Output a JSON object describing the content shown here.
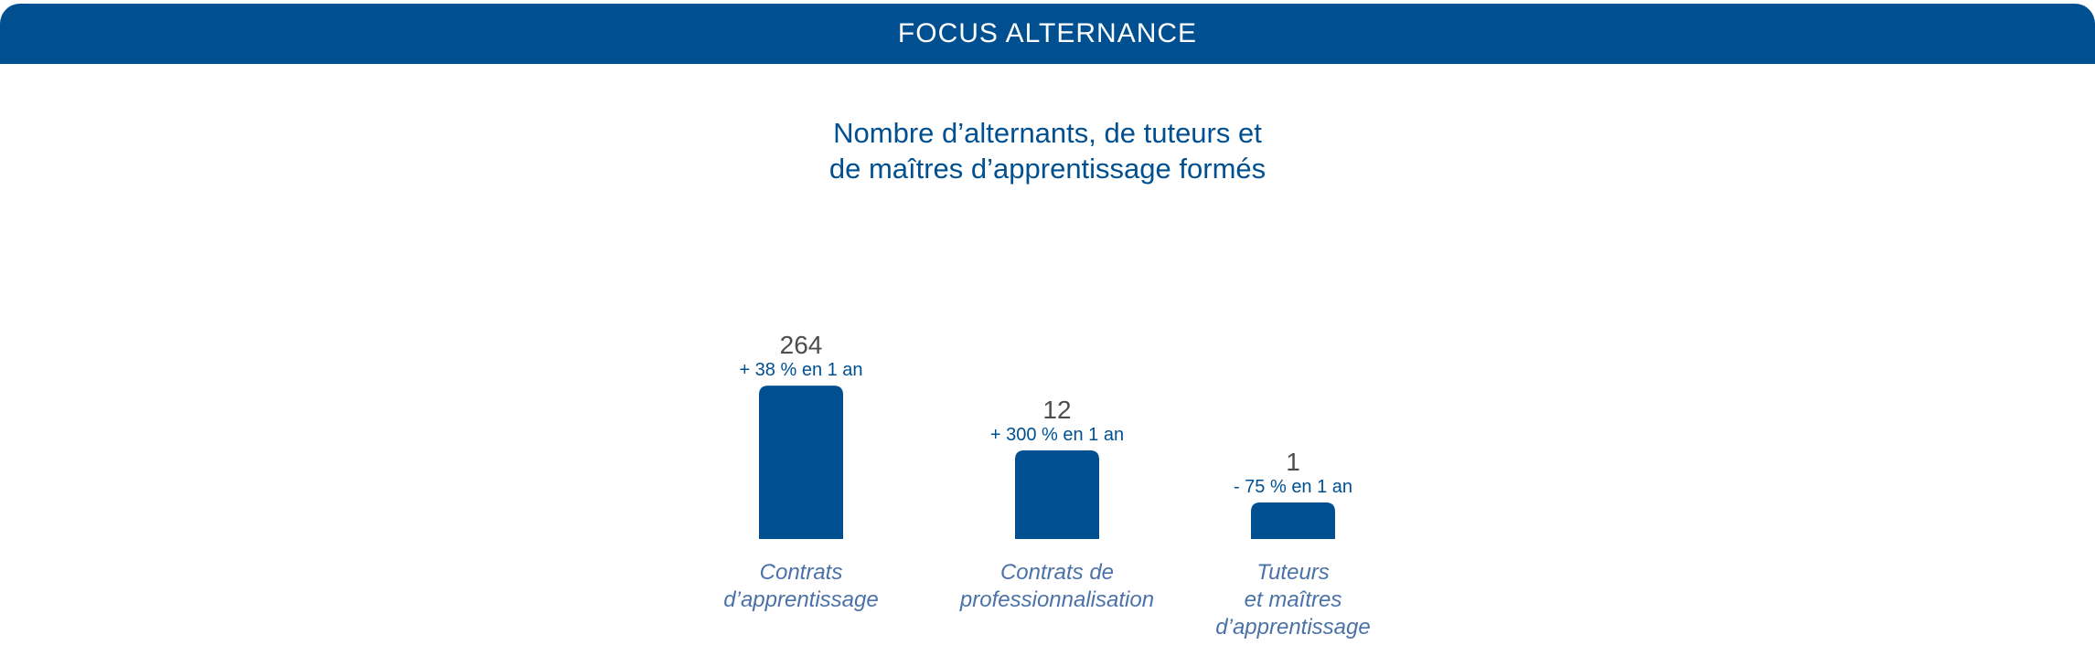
{
  "header": {
    "title": "FOCUS ALTERNANCE"
  },
  "colors": {
    "brand": "#005091",
    "value_text": "#4d4d4d",
    "category_text": "#4a72a8"
  },
  "chart_data": {
    "type": "bar",
    "title_lines": [
      "Nombre d’alternants, de tuteurs et",
      "de maîtres d’apprentissage formés"
    ],
    "categories": [
      [
        "Contrats",
        "d’apprentissage"
      ],
      [
        "Contrats de",
        "professionnalisation"
      ],
      [
        "Tuteurs",
        "et maîtres",
        "d’apprentissage"
      ]
    ],
    "values": [
      264,
      12,
      1
    ],
    "value_labels": [
      "264",
      "12",
      "1"
    ],
    "change_labels": [
      "+ 38 % en 1 an",
      "+ 300 % en 1 an",
      "- 75 % en 1 an"
    ],
    "bar_color": "#005091"
  }
}
